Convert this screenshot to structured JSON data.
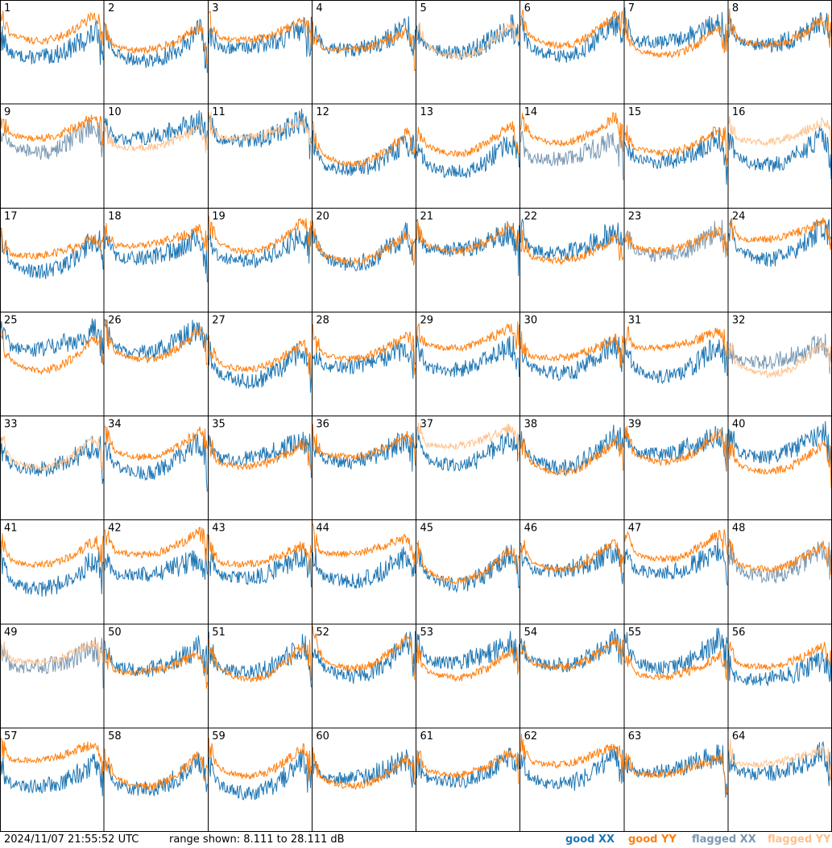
{
  "chart_data": {
    "type": "line",
    "layout": "small-multiples grid, 8 columns x 8 rows",
    "panels": [
      {
        "label": "1",
        "xx": "good",
        "yy": "good"
      },
      {
        "label": "2",
        "xx": "good",
        "yy": "good"
      },
      {
        "label": "3",
        "xx": "good",
        "yy": "good"
      },
      {
        "label": "4",
        "xx": "good",
        "yy": "good"
      },
      {
        "label": "5",
        "xx": "good",
        "yy": "flagged"
      },
      {
        "label": "6",
        "xx": "good",
        "yy": "good"
      },
      {
        "label": "7",
        "xx": "good",
        "yy": "good"
      },
      {
        "label": "8",
        "xx": "good",
        "yy": "good"
      },
      {
        "label": "9",
        "xx": "flagged",
        "yy": "good"
      },
      {
        "label": "10",
        "xx": "good",
        "yy": "flagged"
      },
      {
        "label": "11",
        "xx": "good",
        "yy": "flagged"
      },
      {
        "label": "12",
        "xx": "good",
        "yy": "good"
      },
      {
        "label": "13",
        "xx": "good",
        "yy": "good"
      },
      {
        "label": "14",
        "xx": "flagged",
        "yy": "good"
      },
      {
        "label": "15",
        "xx": "good",
        "yy": "good"
      },
      {
        "label": "16",
        "xx": "good",
        "yy": "flagged"
      },
      {
        "label": "17",
        "xx": "good",
        "yy": "good"
      },
      {
        "label": "18",
        "xx": "good",
        "yy": "good"
      },
      {
        "label": "19",
        "xx": "good",
        "yy": "good"
      },
      {
        "label": "20",
        "xx": "good",
        "yy": "good"
      },
      {
        "label": "21",
        "xx": "good",
        "yy": "good"
      },
      {
        "label": "22",
        "xx": "good",
        "yy": "good"
      },
      {
        "label": "23",
        "xx": "flagged",
        "yy": "good"
      },
      {
        "label": "24",
        "xx": "good",
        "yy": "good"
      },
      {
        "label": "25",
        "xx": "good",
        "yy": "good"
      },
      {
        "label": "26",
        "xx": "good",
        "yy": "good"
      },
      {
        "label": "27",
        "xx": "good",
        "yy": "good"
      },
      {
        "label": "28",
        "xx": "good",
        "yy": "good"
      },
      {
        "label": "29",
        "xx": "good",
        "yy": "good"
      },
      {
        "label": "30",
        "xx": "good",
        "yy": "good"
      },
      {
        "label": "31",
        "xx": "good",
        "yy": "good"
      },
      {
        "label": "32",
        "xx": "flagged",
        "yy": "flagged"
      },
      {
        "label": "33",
        "xx": "good",
        "yy": "flagged"
      },
      {
        "label": "34",
        "xx": "good",
        "yy": "good"
      },
      {
        "label": "35",
        "xx": "good",
        "yy": "good"
      },
      {
        "label": "36",
        "xx": "good",
        "yy": "good"
      },
      {
        "label": "37",
        "xx": "good",
        "yy": "flagged"
      },
      {
        "label": "38",
        "xx": "good",
        "yy": "good"
      },
      {
        "label": "39",
        "xx": "good",
        "yy": "good"
      },
      {
        "label": "40",
        "xx": "good",
        "yy": "good"
      },
      {
        "label": "41",
        "xx": "good",
        "yy": "good"
      },
      {
        "label": "42",
        "xx": "good",
        "yy": "good"
      },
      {
        "label": "43",
        "xx": "good",
        "yy": "good"
      },
      {
        "label": "44",
        "xx": "good",
        "yy": "good"
      },
      {
        "label": "45",
        "xx": "good",
        "yy": "good"
      },
      {
        "label": "46",
        "xx": "good",
        "yy": "good"
      },
      {
        "label": "47",
        "xx": "good",
        "yy": "good"
      },
      {
        "label": "48",
        "xx": "flagged",
        "yy": "good"
      },
      {
        "label": "49",
        "xx": "flagged",
        "yy": "flagged"
      },
      {
        "label": "50",
        "xx": "good",
        "yy": "good"
      },
      {
        "label": "51",
        "xx": "good",
        "yy": "good"
      },
      {
        "label": "52",
        "xx": "good",
        "yy": "good"
      },
      {
        "label": "53",
        "xx": "good",
        "yy": "good"
      },
      {
        "label": "54",
        "xx": "good",
        "yy": "good"
      },
      {
        "label": "55",
        "xx": "good",
        "yy": "good"
      },
      {
        "label": "56",
        "xx": "good",
        "yy": "good"
      },
      {
        "label": "57",
        "xx": "good",
        "yy": "good"
      },
      {
        "label": "58",
        "xx": "good",
        "yy": "good"
      },
      {
        "label": "59",
        "xx": "good",
        "yy": "good"
      },
      {
        "label": "60",
        "xx": "good",
        "yy": "good"
      },
      {
        "label": "61",
        "xx": "good",
        "yy": "good"
      },
      {
        "label": "62",
        "xx": "good",
        "yy": "good"
      },
      {
        "label": "63",
        "xx": "good",
        "yy": "good"
      },
      {
        "label": "64",
        "xx": "good",
        "yy": "flagged"
      }
    ],
    "y_range_db": [
      8.111,
      28.111
    ],
    "grid": false
  },
  "footer": {
    "timestamp": "2024/11/07 21:55:52 UTC",
    "range_text": "range shown: 8.111 to 28.111 dB"
  },
  "legend": [
    {
      "label": "good XX",
      "color": "#1f77b4"
    },
    {
      "label": "good YY",
      "color": "#ff7f0e"
    },
    {
      "label": "flagged XX",
      "color": "#7a99b4"
    },
    {
      "label": "flagged YY",
      "color": "#ffc08a"
    }
  ],
  "colors": {
    "good_xx": "#1f77b4",
    "good_yy": "#ff7f0e",
    "flagged_xx": "#7a99b4",
    "flagged_yy": "#ffc08a",
    "grid_lines": "#000000"
  }
}
